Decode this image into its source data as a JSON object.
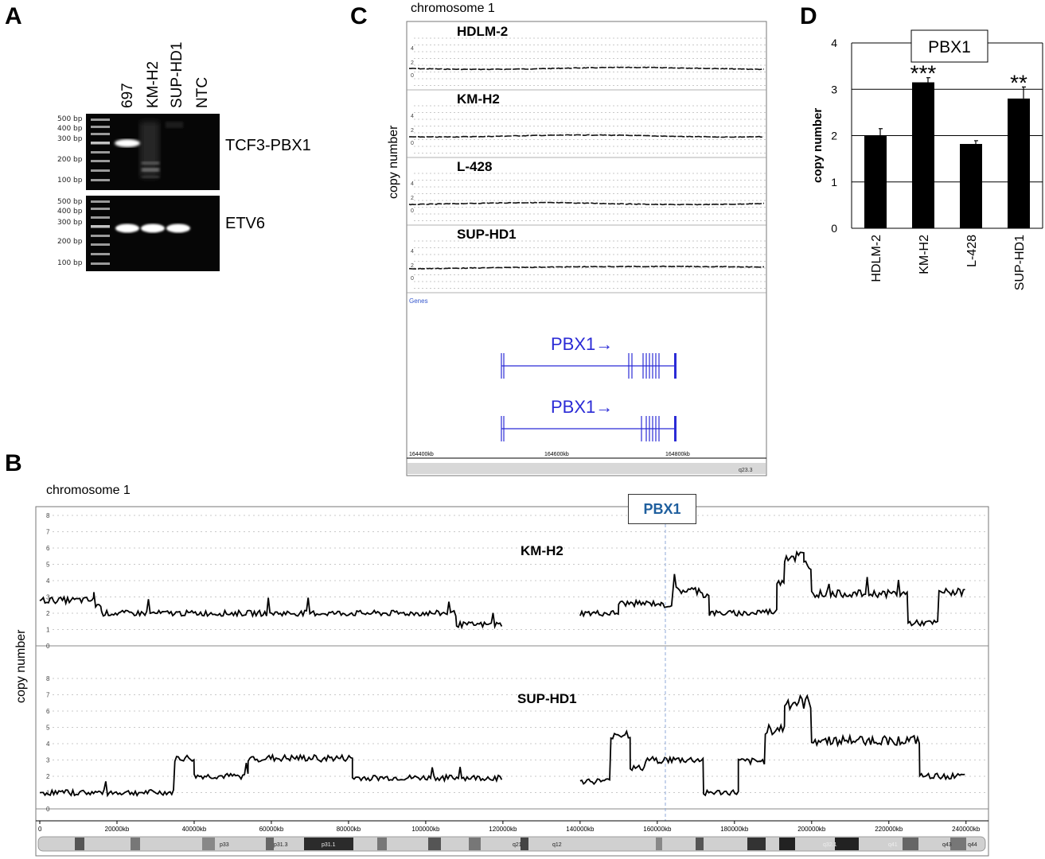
{
  "panels": {
    "a": "A",
    "b": "B",
    "c": "C",
    "d": "D"
  },
  "panel_a": {
    "lanes": [
      "697",
      "KM-H2",
      "SUP-HD1",
      "NTC"
    ],
    "ladder": [
      "500 bp",
      "400 bp",
      "300 bp",
      "200 bp",
      "100 bp"
    ],
    "gels": [
      {
        "label": "TCF3-PBX1"
      },
      {
        "label": "ETV6"
      }
    ]
  },
  "panel_c": {
    "title": "chromosome 1",
    "ylabel": "copy number",
    "tracks": [
      {
        "name": "HDLM-2",
        "ticks": [
          "4",
          "2",
          "0"
        ]
      },
      {
        "name": "KM-H2",
        "ticks": [
          "4",
          "2",
          "0"
        ]
      },
      {
        "name": "L-428",
        "ticks": [
          "4",
          "2",
          "0"
        ]
      },
      {
        "name": "SUP-HD1",
        "ticks": [
          "4",
          "2",
          "0"
        ]
      }
    ],
    "genes_label": "Genes",
    "genes": [
      "PBX1→",
      "PBX1→"
    ],
    "coords": [
      "164400kb",
      "164600kb",
      "164800kb"
    ],
    "band": "q23.3"
  },
  "panel_b": {
    "title": "chromosome 1",
    "ylabel": "copy number",
    "marker": "PBX1",
    "tracks": [
      {
        "name": "KM-H2",
        "ticks": [
          "8",
          "7",
          "6",
          "5",
          "4",
          "3",
          "2",
          "1",
          "0"
        ]
      },
      {
        "name": "SUP-HD1",
        "ticks": [
          "8",
          "7",
          "6",
          "5",
          "4",
          "3",
          "2",
          "1",
          "0"
        ]
      }
    ],
    "axis": [
      "0",
      "20000kb",
      "40000kb",
      "60000kb",
      "80000kb",
      "100000kb",
      "120000kb",
      "140000kb",
      "160000kb",
      "180000kb",
      "200000kb",
      "220000kb",
      "240000kb"
    ],
    "bands": [
      "p33",
      "p31.3",
      "p31.1",
      "q12",
      "q21",
      "q32.1",
      "q41",
      "q43",
      "q44"
    ]
  },
  "chart_data": {
    "type": "bar",
    "title": "PBX1",
    "xlabel": "",
    "ylabel": "copy number",
    "categories": [
      "HDLM-2",
      "KM-H2",
      "L-428",
      "SUP-HD1"
    ],
    "values": [
      2.0,
      3.15,
      1.82,
      2.8
    ],
    "errors": [
      0.15,
      0.1,
      0.07,
      0.25
    ],
    "significance": [
      "",
      "***",
      "",
      "**"
    ],
    "yticks": [
      "0",
      "1",
      "2",
      "3",
      "4"
    ],
    "ylim": [
      0,
      4
    ],
    "grid": true,
    "colors": {
      "bar": "#000000"
    }
  }
}
